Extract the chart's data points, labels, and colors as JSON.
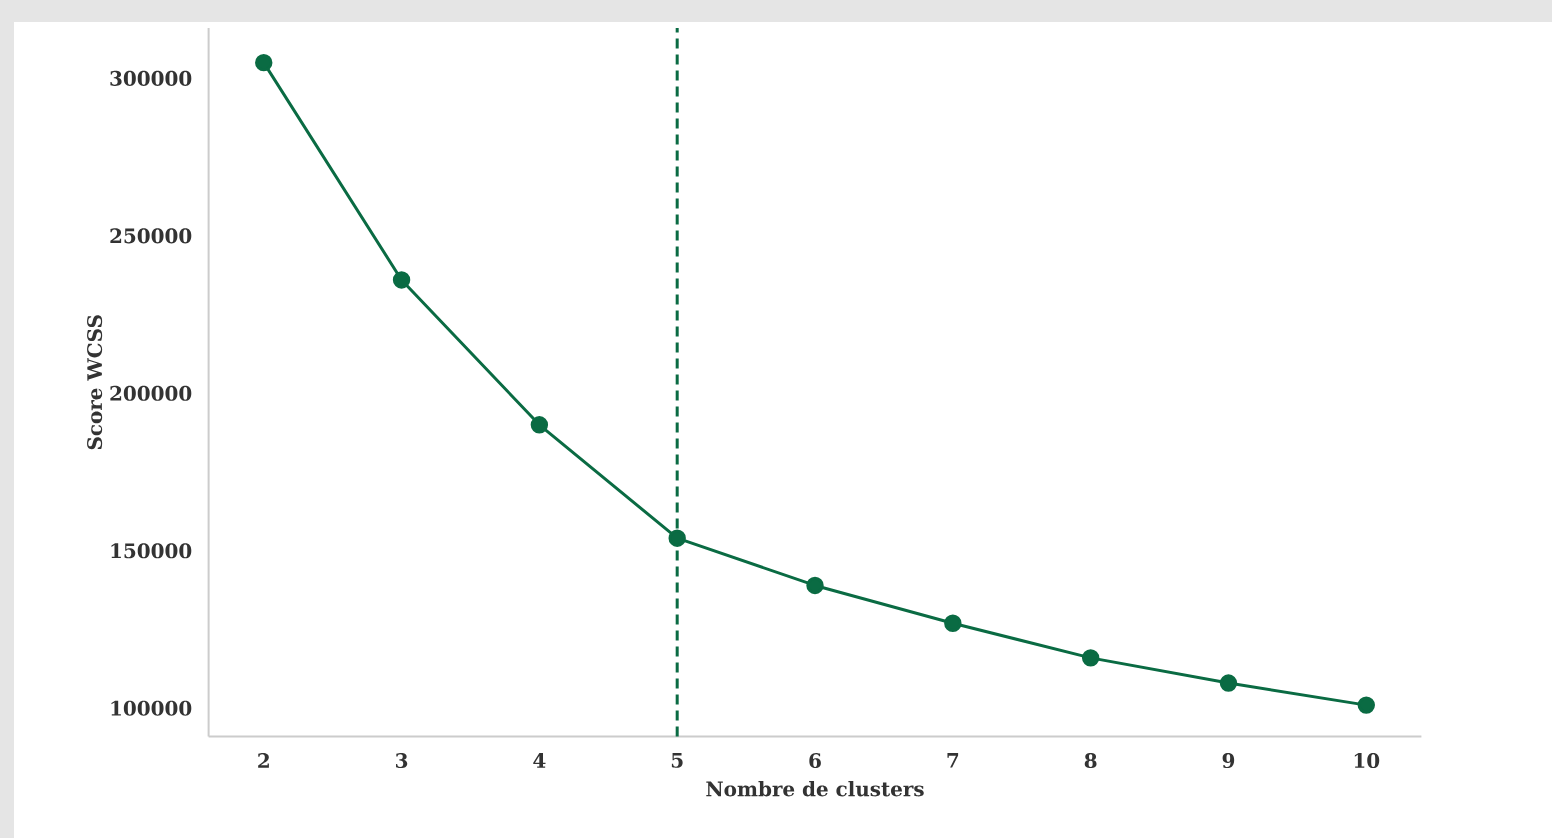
{
  "chart_data": {
    "type": "line",
    "xlabel": "Nombre de clusters",
    "ylabel": "Score WCSS",
    "x": [
      2,
      3,
      4,
      5,
      6,
      7,
      8,
      9,
      10
    ],
    "series": [
      {
        "color": "#0a6b43",
        "values": [
          305000,
          236000,
          190000,
          154000,
          139000,
          127000,
          116000,
          108000,
          101000
        ]
      }
    ],
    "xlim": [
      1.6,
      10.4
    ],
    "ylim": [
      91000,
      316000
    ],
    "xticks": [
      2,
      3,
      4,
      5,
      6,
      7,
      8,
      9,
      10
    ],
    "yticks": [
      100000,
      150000,
      200000,
      250000,
      300000
    ],
    "ref_lines": [
      {
        "axis": "x",
        "value": 5,
        "color": "#0a6b43",
        "line_style": "dashed"
      }
    ],
    "marker": "circle",
    "line_style": "solid"
  }
}
